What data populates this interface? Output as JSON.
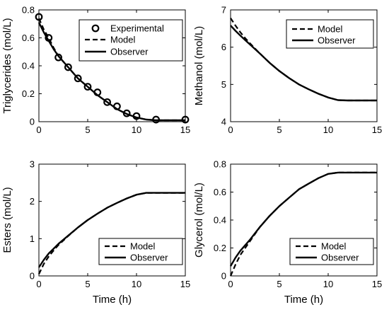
{
  "chart_data": [
    {
      "type": "line",
      "ylabel": "Triglycerides (mol/L)",
      "xlabel": "",
      "xlim": [
        0,
        15
      ],
      "ylim": [
        0,
        0.8
      ],
      "xticks": [
        "0",
        "5",
        "10",
        "15"
      ],
      "yticks": [
        "0",
        "0.2",
        "0.4",
        "0.6",
        "0.8"
      ],
      "legend_position": "top-right",
      "series": [
        {
          "name": "Experimental",
          "style": "markers",
          "color": "#000000",
          "x": [
            0,
            1,
            2,
            3,
            4,
            5,
            6,
            7,
            8,
            9,
            10,
            12,
            15
          ],
          "y": [
            0.75,
            0.6,
            0.46,
            0.39,
            0.31,
            0.25,
            0.21,
            0.14,
            0.11,
            0.06,
            0.04,
            0.015,
            0.015
          ]
        },
        {
          "name": "Model",
          "style": "dashed",
          "color": "#000000",
          "x": [
            0,
            0.5,
            1,
            1.5,
            2,
            3,
            4,
            5,
            6,
            7,
            8,
            9,
            10,
            11,
            12,
            13,
            14,
            15
          ],
          "y": [
            0.74,
            0.66,
            0.6,
            0.53,
            0.47,
            0.39,
            0.31,
            0.25,
            0.19,
            0.14,
            0.09,
            0.055,
            0.03,
            0.015,
            0.01,
            0.01,
            0.01,
            0.01
          ]
        },
        {
          "name": "Observer",
          "style": "solid",
          "color": "#000000",
          "x": [
            0,
            0.5,
            1,
            1.5,
            2,
            3,
            4,
            5,
            6,
            7,
            8,
            9,
            10,
            11,
            12,
            13,
            14,
            15
          ],
          "y": [
            0.71,
            0.64,
            0.58,
            0.52,
            0.47,
            0.39,
            0.31,
            0.25,
            0.19,
            0.14,
            0.09,
            0.055,
            0.03,
            0.015,
            0.01,
            0.01,
            0.01,
            0.01
          ]
        }
      ]
    },
    {
      "type": "line",
      "ylabel": "Methanol (mol/L)",
      "xlabel": "",
      "xlim": [
        0,
        15
      ],
      "ylim": [
        4,
        7
      ],
      "xticks": [
        "0",
        "5",
        "10",
        "15"
      ],
      "yticks": [
        "4",
        "5",
        "6",
        "7"
      ],
      "legend_position": "top-right",
      "series": [
        {
          "name": "Model",
          "style": "dashed",
          "color": "#000000",
          "x": [
            0,
            0.5,
            1,
            1.5,
            2,
            3,
            4,
            5,
            6,
            7,
            8,
            9,
            10,
            11,
            12,
            13,
            14,
            15
          ],
          "y": [
            6.78,
            6.58,
            6.4,
            6.24,
            6.1,
            5.83,
            5.58,
            5.36,
            5.17,
            5.0,
            4.87,
            4.75,
            4.65,
            4.58,
            4.57,
            4.57,
            4.57,
            4.57
          ]
        },
        {
          "name": "Observer",
          "style": "solid",
          "color": "#000000",
          "x": [
            0,
            0.5,
            1,
            1.5,
            2,
            3,
            4,
            5,
            6,
            7,
            8,
            9,
            10,
            11,
            12,
            13,
            14,
            15
          ],
          "y": [
            6.58,
            6.44,
            6.31,
            6.19,
            6.07,
            5.83,
            5.58,
            5.36,
            5.17,
            5.0,
            4.87,
            4.75,
            4.65,
            4.58,
            4.57,
            4.57,
            4.57,
            4.57
          ]
        }
      ]
    },
    {
      "type": "line",
      "ylabel": "Esters (mol/L)",
      "xlabel": "Time (h)",
      "xlim": [
        0,
        15
      ],
      "ylim": [
        0,
        3
      ],
      "xticks": [
        "0",
        "5",
        "10",
        "15"
      ],
      "yticks": [
        "0",
        "1",
        "2",
        "3"
      ],
      "legend_position": "bottom-right",
      "series": [
        {
          "name": "Model",
          "style": "dashed",
          "color": "#000000",
          "x": [
            0,
            0.5,
            1,
            1.5,
            2,
            3,
            4,
            5,
            6,
            7,
            8,
            9,
            10,
            11,
            12,
            13,
            14,
            15
          ],
          "y": [
            0.05,
            0.32,
            0.52,
            0.68,
            0.83,
            1.07,
            1.3,
            1.5,
            1.67,
            1.83,
            1.96,
            2.08,
            2.18,
            2.23,
            2.23,
            2.23,
            2.23,
            2.23
          ]
        },
        {
          "name": "Observer",
          "style": "solid",
          "color": "#000000",
          "x": [
            0,
            0.5,
            1,
            1.5,
            2,
            3,
            4,
            5,
            6,
            7,
            8,
            9,
            10,
            11,
            12,
            13,
            14,
            15
          ],
          "y": [
            0.23,
            0.43,
            0.6,
            0.73,
            0.86,
            1.08,
            1.3,
            1.5,
            1.67,
            1.83,
            1.96,
            2.08,
            2.18,
            2.23,
            2.23,
            2.23,
            2.23,
            2.23
          ]
        }
      ]
    },
    {
      "type": "line",
      "ylabel": "Glycerol (mol/L)",
      "xlabel": "Time (h)",
      "xlim": [
        0,
        15
      ],
      "ylim": [
        0,
        0.8
      ],
      "xticks": [
        "0",
        "5",
        "10",
        "15"
      ],
      "yticks": [
        "0",
        "0.2",
        "0.4",
        "0.6",
        "0.8"
      ],
      "legend_position": "bottom-right",
      "series": [
        {
          "name": "Model",
          "style": "dashed",
          "color": "#000000",
          "x": [
            0,
            0.5,
            1,
            1.5,
            2,
            3,
            4,
            5,
            6,
            7,
            8,
            9,
            10,
            11,
            12,
            13,
            14,
            15
          ],
          "y": [
            0.0,
            0.08,
            0.15,
            0.2,
            0.25,
            0.35,
            0.43,
            0.5,
            0.56,
            0.62,
            0.66,
            0.7,
            0.73,
            0.74,
            0.74,
            0.74,
            0.74,
            0.74
          ]
        },
        {
          "name": "Observer",
          "style": "solid",
          "color": "#000000",
          "x": [
            0,
            0.5,
            1,
            1.5,
            2,
            3,
            4,
            5,
            6,
            7,
            8,
            9,
            10,
            11,
            12,
            13,
            14,
            15
          ],
          "y": [
            0.07,
            0.13,
            0.18,
            0.22,
            0.26,
            0.35,
            0.43,
            0.5,
            0.56,
            0.62,
            0.66,
            0.7,
            0.73,
            0.74,
            0.74,
            0.74,
            0.74,
            0.74
          ]
        }
      ]
    }
  ]
}
